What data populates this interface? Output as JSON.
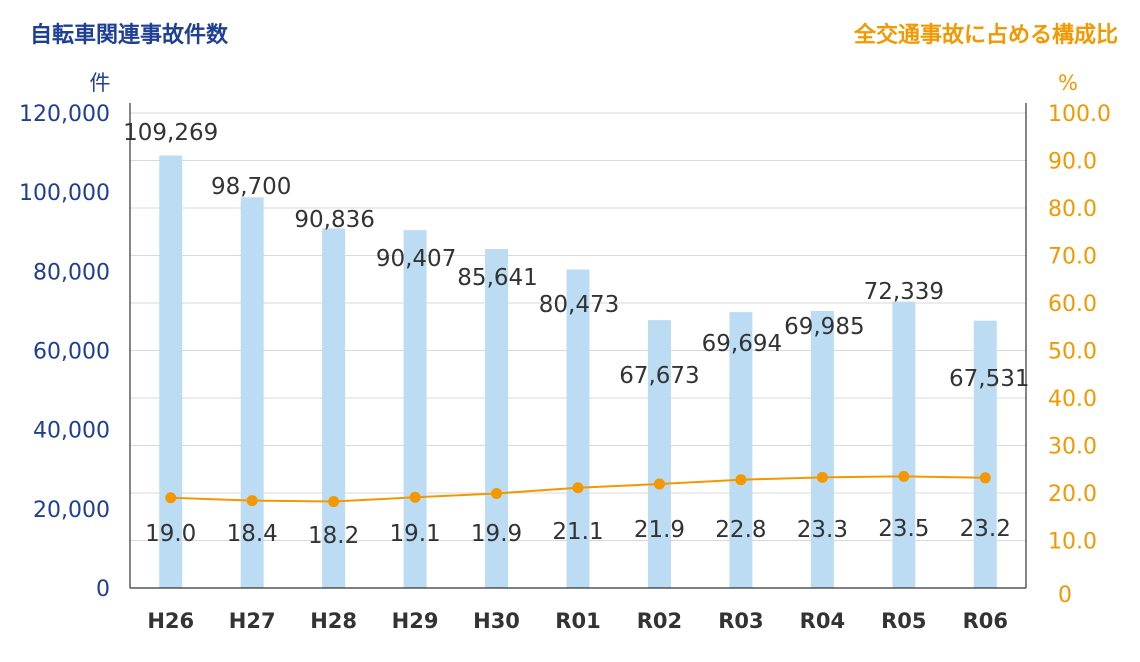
{
  "chart_data": {
    "type": "bar",
    "categories": [
      "H26",
      "H27",
      "H28",
      "H29",
      "H30",
      "R01",
      "R02",
      "R03",
      "R04",
      "R05",
      "R06"
    ],
    "series": [
      {
        "name": "自転車関連事故件数",
        "type": "bar",
        "axis": "left",
        "values": [
          109269,
          98700,
          90836,
          90407,
          85641,
          80473,
          67673,
          69694,
          69985,
          72339,
          67531
        ],
        "labels": [
          "109,269",
          "98,700",
          "90,836",
          "90,407",
          "85,641",
          "80,473",
          "67,673",
          "69,694",
          "69,985",
          "72,339",
          "67,531"
        ]
      },
      {
        "name": "全交通事故に占める構成比",
        "type": "line",
        "axis": "right",
        "values": [
          19.0,
          18.4,
          18.2,
          19.1,
          19.9,
          21.1,
          21.9,
          22.8,
          23.3,
          23.5,
          23.2
        ],
        "labels": [
          "19.0",
          "18.4",
          "18.2",
          "19.1",
          "19.9",
          "21.1",
          "21.9",
          "22.8",
          "23.3",
          "23.5",
          "23.2"
        ]
      }
    ],
    "left_axis": {
      "title": "自転車関連事故件数",
      "unit": "件",
      "ylim": [
        0,
        120000
      ],
      "ticks": [
        0,
        20000,
        40000,
        60000,
        80000,
        100000,
        120000
      ],
      "tick_labels": [
        "0",
        "20,000",
        "40,000",
        "60,000",
        "80,000",
        "100,000",
        "120,000"
      ]
    },
    "right_axis": {
      "title": "全交通事故に占める構成比",
      "unit": "%",
      "ylim": [
        0,
        100
      ],
      "ticks": [
        0,
        10,
        20,
        30,
        40,
        50,
        60,
        70,
        80,
        90,
        100
      ],
      "tick_labels": [
        "0",
        "10.0",
        "20.0",
        "30.0",
        "40.0",
        "50.0",
        "60.0",
        "70.0",
        "80.0",
        "90.0",
        "100.0"
      ]
    },
    "grid": true,
    "colors": {
      "bar": "#bcdcf4",
      "line": "#f39800",
      "left_axis_text": "#1f3f94",
      "right_axis_text": "#f39800",
      "grid": "#d9d9d9"
    }
  }
}
